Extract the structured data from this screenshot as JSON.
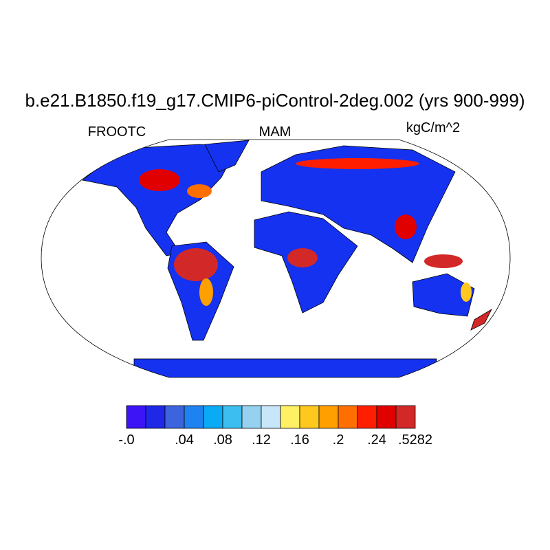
{
  "header": {
    "title": "b.e21.B1850.f19_g17.CMIP6-piControl-2deg.002 (yrs 900-999)",
    "left_label": "FROOTC",
    "center_label": "MAM",
    "right_label": "kgC/m^2"
  },
  "colorbar": {
    "colors": [
      "#3c14f5",
      "#1e28e6",
      "#3c64dc",
      "#1e82f0",
      "#0aaaf5",
      "#3cbef0",
      "#96d2f0",
      "#c8e6fa",
      "#fff064",
      "#ffc81e",
      "#ffa000",
      "#ff6e00",
      "#ff1e00",
      "#e10000",
      "#d22828"
    ],
    "labels": [
      "-.0",
      ".04",
      ".08",
      ".12",
      ".16",
      ".2",
      ".24",
      ".5282"
    ]
  }
}
